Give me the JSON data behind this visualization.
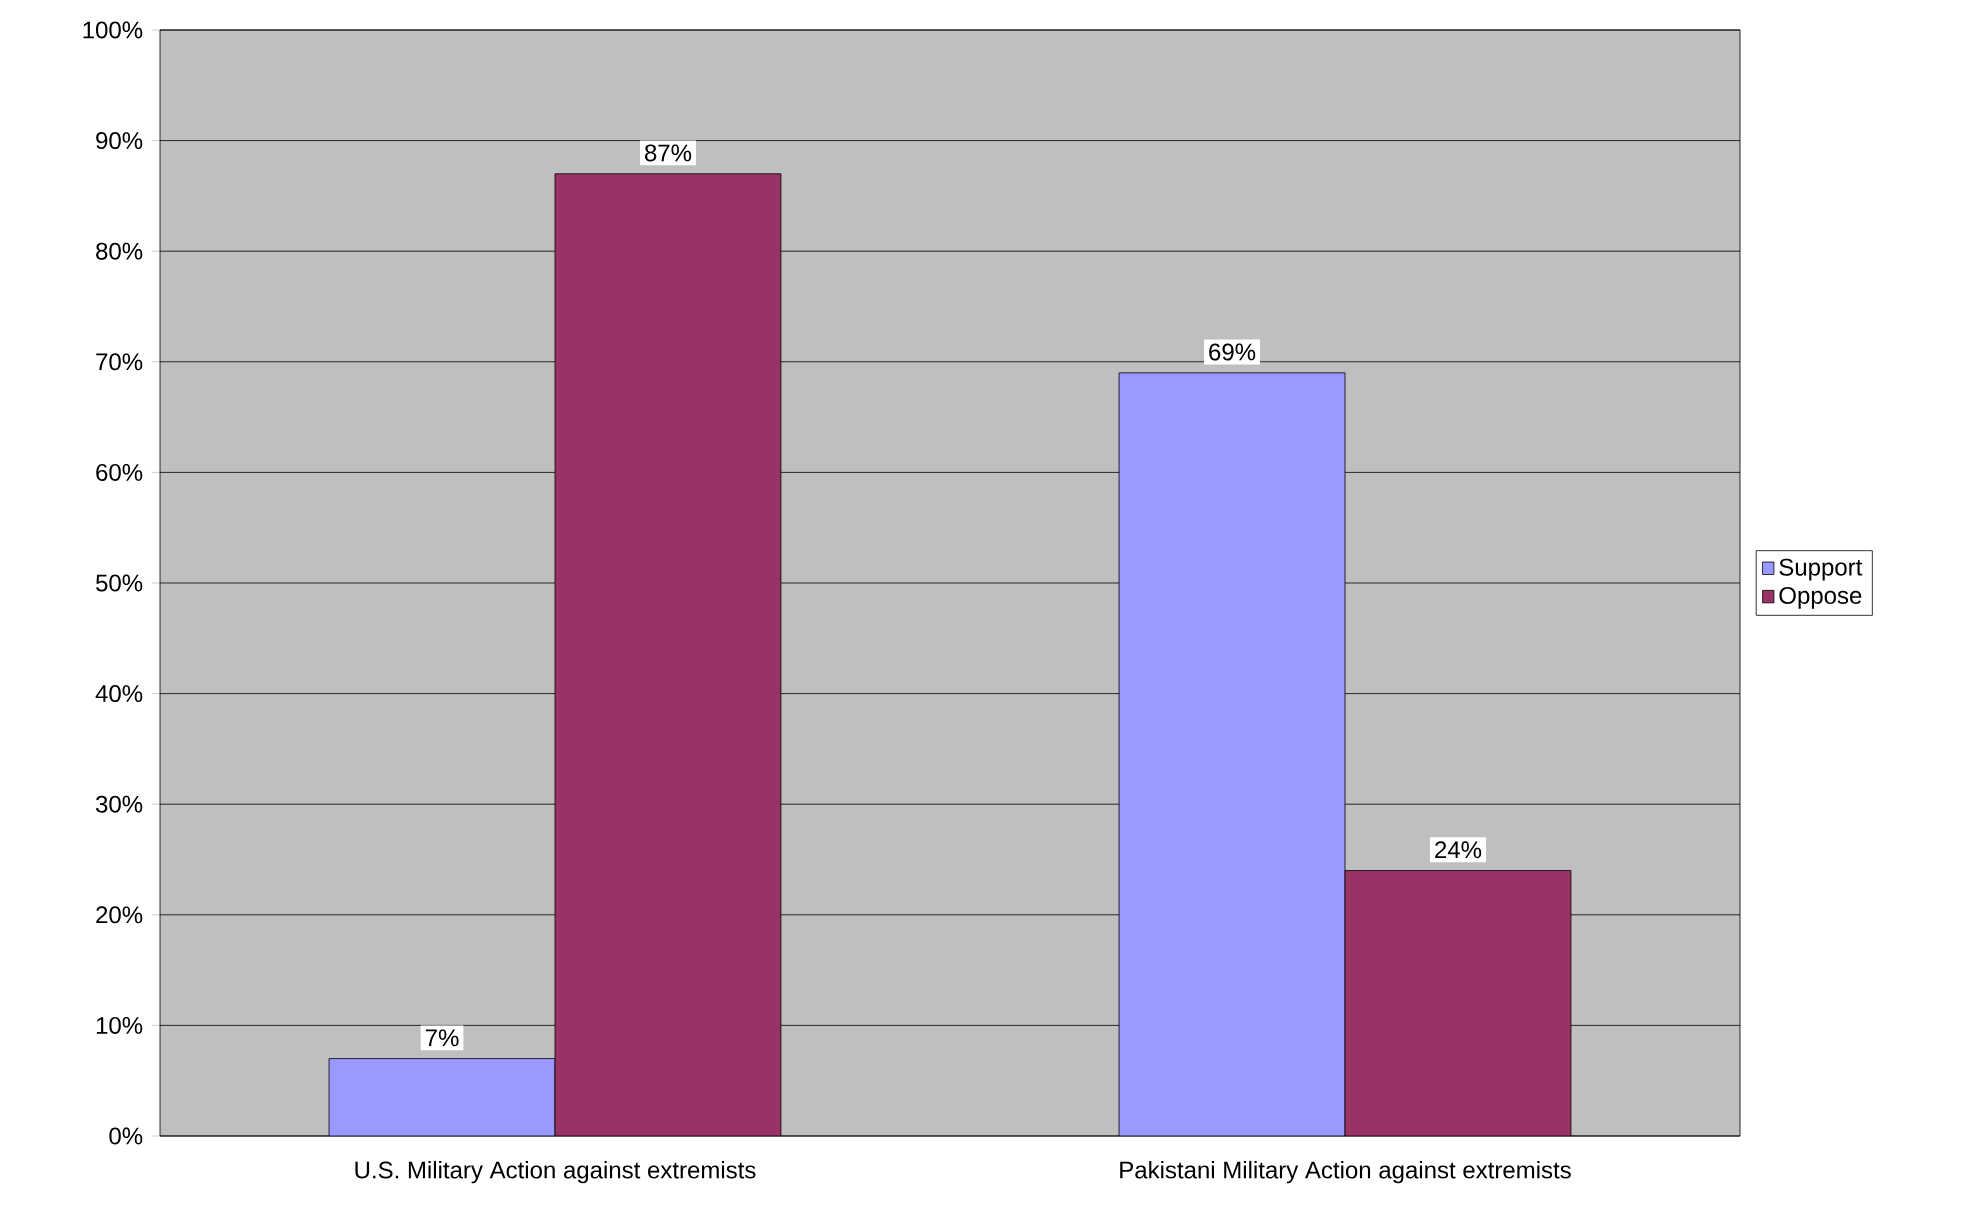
{
  "chart_data": {
    "type": "bar",
    "categories": [
      "U.S. Military Action against extremists",
      "Pakistani Military Action against extremists"
    ],
    "series": [
      {
        "name": "Support",
        "color": "#9999ff",
        "values": [
          7,
          69
        ],
        "value_labels": [
          "7%",
          "69%"
        ]
      },
      {
        "name": "Oppose",
        "color": "#993366",
        "values": [
          87,
          24
        ],
        "value_labels": [
          "87%",
          "24%"
        ]
      }
    ],
    "ylim": [
      0,
      100
    ],
    "yticks": [
      {
        "value": 0,
        "label": "0%"
      },
      {
        "value": 10,
        "label": "10%"
      },
      {
        "value": 20,
        "label": "20%"
      },
      {
        "value": 30,
        "label": "30%"
      },
      {
        "value": 40,
        "label": "40%"
      },
      {
        "value": 50,
        "label": "50%"
      },
      {
        "value": 60,
        "label": "60%"
      },
      {
        "value": 70,
        "label": "70%"
      },
      {
        "value": 80,
        "label": "80%"
      },
      {
        "value": 90,
        "label": "90%"
      },
      {
        "value": 100,
        "label": "100%"
      }
    ],
    "grid": "y",
    "legend": "right"
  }
}
